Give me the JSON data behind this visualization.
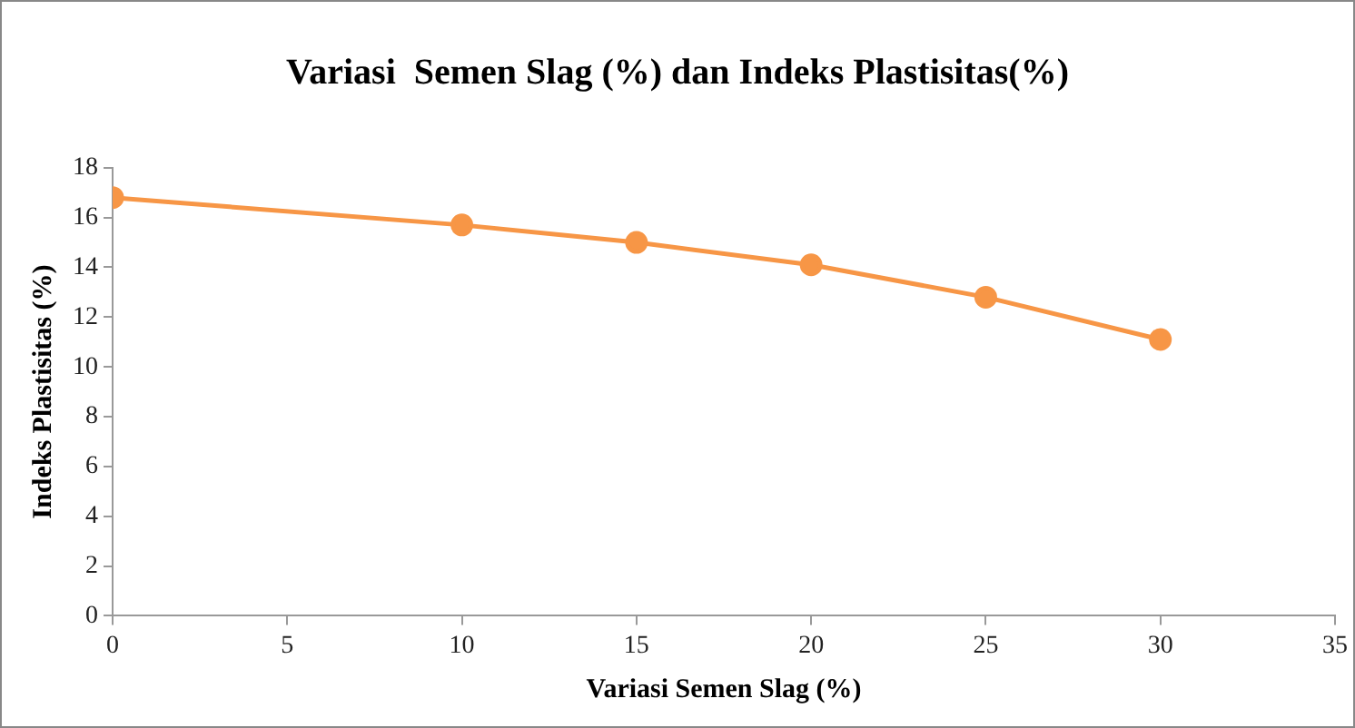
{
  "chart_data": {
    "type": "line",
    "title": "Variasi  Semen Slag (%) dan Indeks Plastisitas(%)",
    "xlabel": "Variasi Semen Slag (%)",
    "ylabel": "Indeks Plastisitas (%)",
    "x": [
      0,
      10,
      15,
      20,
      25,
      30
    ],
    "series": [
      {
        "color": "#f79646",
        "values": [
          16.8,
          15.7,
          15.0,
          14.1,
          12.8,
          11.1
        ]
      }
    ],
    "xlim": [
      0,
      35
    ],
    "xticks": [
      0,
      5,
      10,
      15,
      20,
      25,
      30,
      35
    ],
    "ylim": [
      0,
      18
    ],
    "yticks": [
      0,
      2,
      4,
      6,
      8,
      10,
      12,
      14,
      16,
      18
    ],
    "grid": false,
    "legend": false,
    "marker": "circle",
    "line_style": "solid"
  }
}
